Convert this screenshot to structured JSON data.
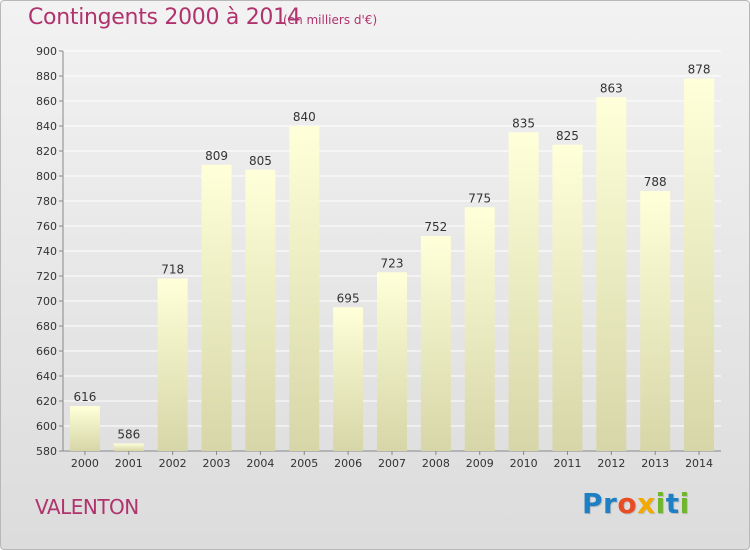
{
  "header": {
    "title": "Contingents 2000 à 2014",
    "unit": "(en milliers d'€)"
  },
  "footer": {
    "city": "VALENTON",
    "logo_letters": [
      {
        "ch": "P",
        "color": "#1f7fc4"
      },
      {
        "ch": "r",
        "color": "#1f7fc4"
      },
      {
        "ch": "o",
        "color": "#e84c24"
      },
      {
        "ch": "x",
        "color": "#f2a900"
      },
      {
        "ch": "i",
        "color": "#6fb62c"
      },
      {
        "ch": "t",
        "color": "#1f7fc4"
      },
      {
        "ch": "i",
        "color": "#6fb62c"
      }
    ]
  },
  "chart_data": {
    "type": "bar",
    "title": "Contingents 2000 à 2014",
    "subtitle": "(en milliers d'€)",
    "categories": [
      "2000",
      "2001",
      "2002",
      "2003",
      "2004",
      "2005",
      "2006",
      "2007",
      "2008",
      "2009",
      "2010",
      "2011",
      "2012",
      "2013",
      "2014"
    ],
    "values": [
      616,
      586,
      718,
      809,
      805,
      840,
      695,
      723,
      752,
      775,
      835,
      825,
      863,
      788,
      878
    ],
    "ylim": [
      580,
      900
    ],
    "yticks": [
      580,
      600,
      620,
      640,
      660,
      680,
      700,
      720,
      740,
      760,
      780,
      800,
      820,
      840,
      860,
      880,
      900
    ],
    "grid": true,
    "colors": {
      "bar_top": "#ffffd9",
      "bar_bottom": "#d6d6a8",
      "grid": "#ffffff",
      "axis": "#888888"
    }
  }
}
